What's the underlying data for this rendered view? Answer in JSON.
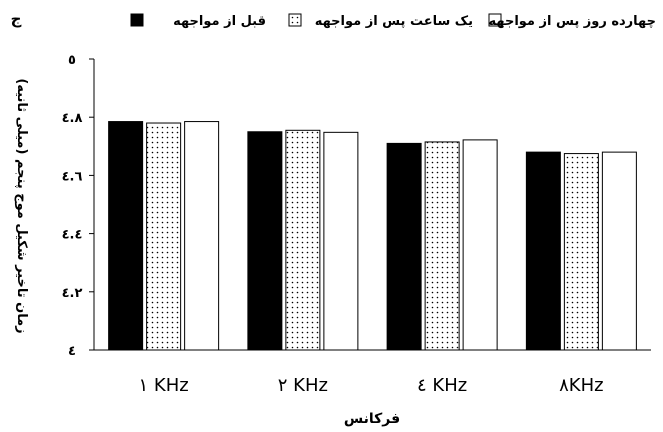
{
  "panel_label": "ج",
  "colors": {
    "series_before": "#000000",
    "series_1h": "#ffffff",
    "series_14d": "#ffffff",
    "axis": "#000000"
  },
  "chart_data": {
    "type": "bar",
    "categories": [
      "۱ KHz",
      "۲ KHz",
      "٤ KHz",
      "۸KHz"
    ],
    "series": [
      {
        "name": "قبل از مواجهه",
        "fill": "solid-black",
        "values": [
          4.785,
          4.75,
          4.71,
          4.68
        ]
      },
      {
        "name": "یک ساعت پس از مواجهه",
        "fill": "dotted",
        "values": [
          4.78,
          4.755,
          4.715,
          4.675
        ]
      },
      {
        "name": "چهارده روز پس از مواجهه",
        "fill": "white",
        "values": [
          4.785,
          4.748,
          4.722,
          4.68
        ]
      }
    ],
    "yticks": [
      "٤",
      "٤.۲",
      "٤.٤",
      "٤.٦",
      "٤.۸",
      "٥"
    ],
    "ylim": [
      4,
      5
    ],
    "ylabel": "زمان تاخیر شکیل موج پنجم (میلی ثانیه)",
    "xlabel": "فرکانس",
    "legend_position": "top",
    "grid": false
  }
}
